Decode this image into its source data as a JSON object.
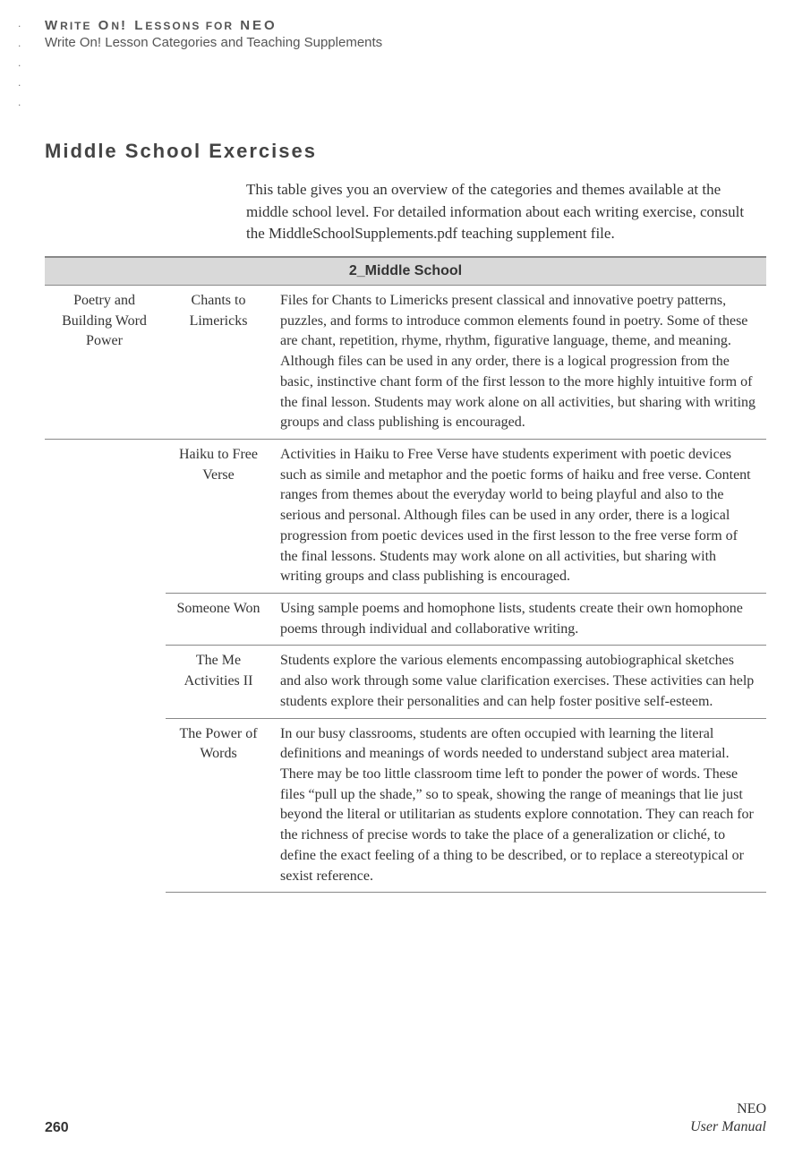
{
  "header": {
    "chapter_prefix": "W",
    "chapter_rest1": "RITE",
    "chapter_mid1": " O",
    "chapter_rest2": "N",
    "chapter_mid2": "! L",
    "chapter_rest3": "ESSONS FOR",
    "chapter_mid3": " NEO",
    "subtitle": "Write On! Lesson Categories and Teaching Supplements"
  },
  "section": {
    "heading": "Middle School Exercises",
    "intro": "This table gives you an overview of the categories and themes available at the middle school level. For detailed information about each writing exercise, consult the MiddleSchoolSupplements.pdf teaching supplement file."
  },
  "table": {
    "header": "2_Middle School",
    "rows": [
      {
        "category": "Poetry and Building Word Power",
        "theme": "Chants to Limericks",
        "desc": "Files for Chants to Limericks present classical and innovative poetry patterns, puzzles, and forms to introduce common elements found in poetry. Some of these are chant, repetition, rhyme, rhythm, figurative language, theme, and meaning. Although files can be used in any order, there is a logical progression from the basic, instinctive chant form of the first lesson to the more highly intuitive form of the final lesson. Students may work alone on all activities, but sharing with writing groups and class publishing is encouraged."
      },
      {
        "category": "",
        "theme": "Haiku to Free Verse",
        "desc": "Activities in Haiku to Free Verse have students experiment with poetic devices such as simile and metaphor and the poetic forms of haiku and free verse. Content ranges from themes about the everyday world to being playful and also to the serious and personal. Although files can be used in any order, there is a logical progression from poetic devices used in the first lesson to the free verse form of the final lessons. Students may work alone on all activities, but sharing with writing groups and class publishing is encouraged."
      },
      {
        "category": "",
        "theme": "Someone Won",
        "desc": "Using sample poems and homophone lists, students create their own homophone poems through individual and collaborative writing."
      },
      {
        "category": "",
        "theme": "The Me Activities II",
        "desc": "Students explore the various elements encompassing autobiographical sketches and also work through some value clarification exercises. These activities can help students explore their personalities and can help foster positive self-esteem."
      },
      {
        "category": "",
        "theme": "The Power of Words",
        "desc": "In our busy classrooms, students are often occupied with learning the literal definitions and meanings of words needed to understand subject area material. There may be too little classroom time left to ponder the power of words. These files “pull up the shade,” so to speak, showing the range of meanings that lie just beyond the literal or utilitarian as students explore connotation. They can reach for the richness of precise words to take the place of a generalization or cliché, to define the exact feeling of a thing to be described, or to replace a stereotypical or sexist reference."
      }
    ]
  },
  "footer": {
    "page": "260",
    "product": "NEO",
    "manual": "User Manual"
  }
}
